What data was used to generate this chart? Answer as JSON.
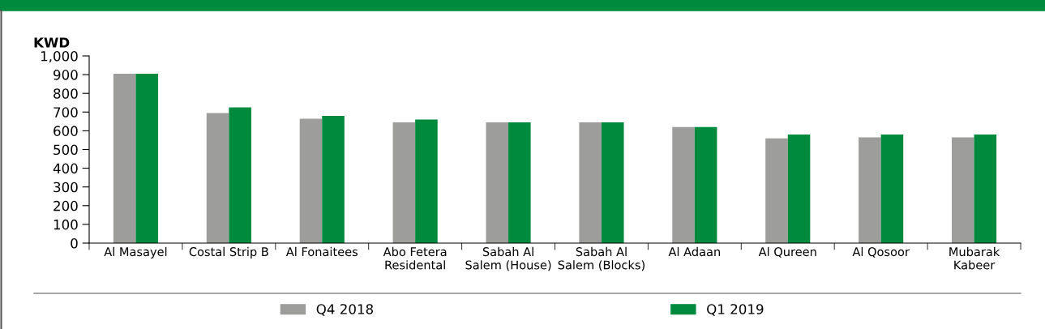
{
  "chart_data": {
    "type": "bar",
    "ylabel": "KWD",
    "categories": [
      "Al Masayel",
      "Costal Strip B",
      "Al Fonaitees",
      "Abo Fetera\nResidental",
      "Sabah Al\nSalem (House)",
      "Sabah Al\nSalem (Blocks)",
      "Al Adaan",
      "Al Qureen",
      "Al Qosoor",
      "Mubarak\nKabeer"
    ],
    "series": [
      {
        "name": "Q4 2018",
        "color": "#9d9d9b",
        "values": [
          905,
          695,
          665,
          645,
          645,
          645,
          620,
          560,
          565,
          565
        ]
      },
      {
        "name": "Q1 2019",
        "color": "#008a3e",
        "values": [
          905,
          725,
          680,
          660,
          645,
          645,
          620,
          580,
          580,
          580
        ]
      }
    ],
    "ylim": [
      0,
      1000
    ],
    "yticks": [
      0,
      100,
      200,
      300,
      400,
      500,
      600,
      700,
      800,
      900,
      {
        "value": 1000,
        "label": "1,000"
      }
    ],
    "grid": false,
    "legend": "bottom"
  }
}
